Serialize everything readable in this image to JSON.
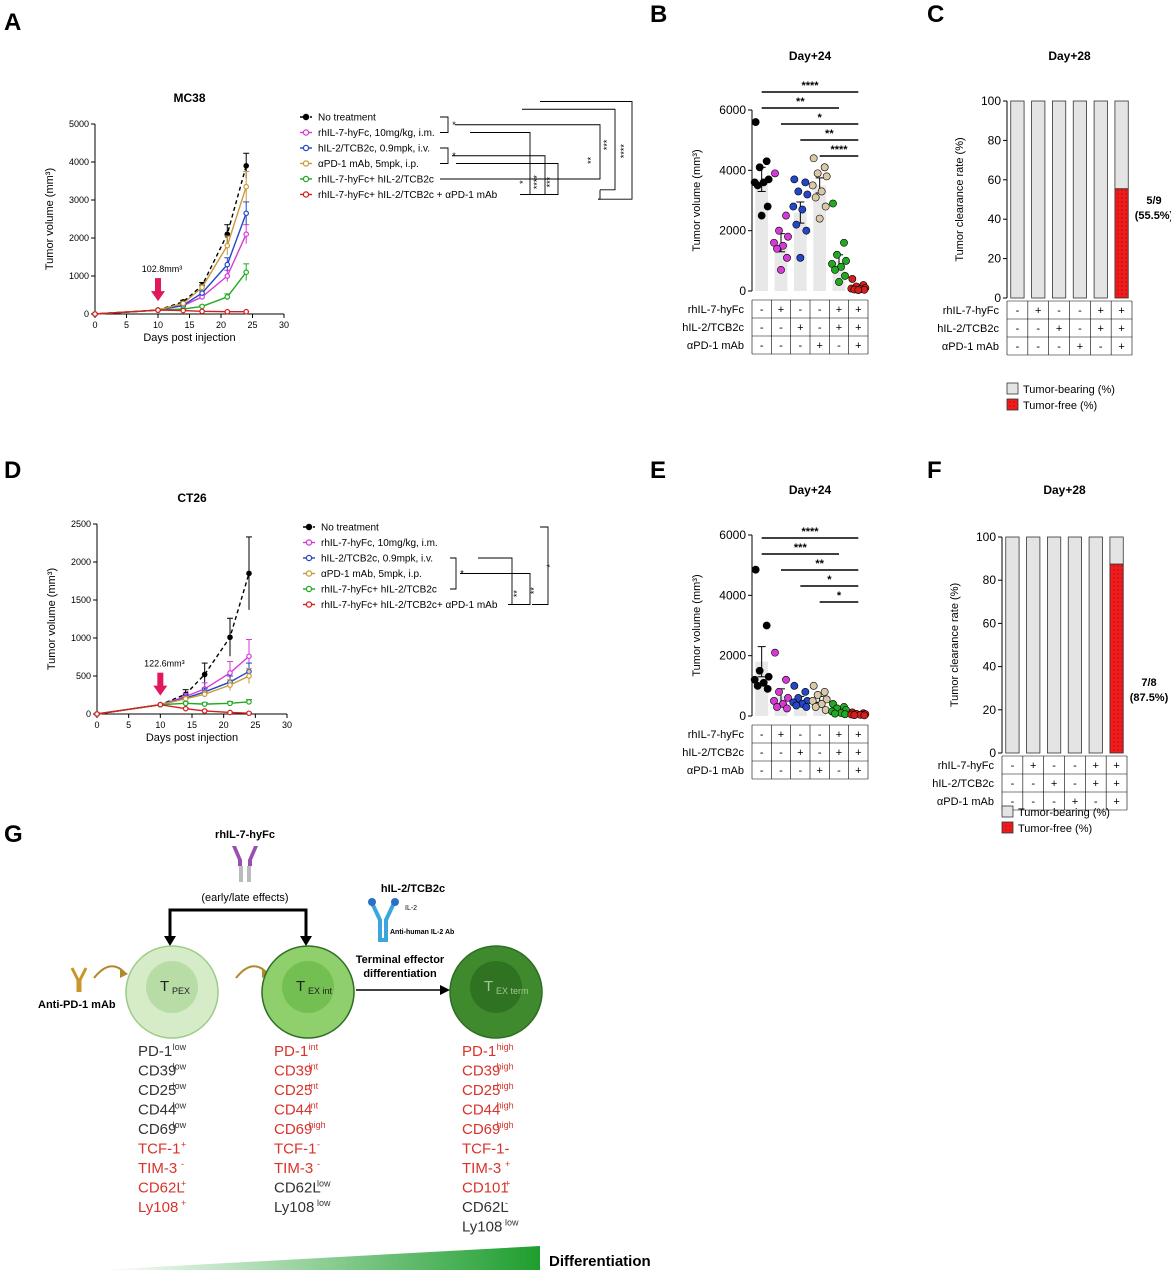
{
  "panel_labels": [
    "A",
    "B",
    "C",
    "D",
    "E",
    "F",
    "G"
  ],
  "chart_data": [
    {
      "id": "A",
      "type": "line",
      "title": "MC38",
      "xlabel": "Days post injection",
      "ylabel": "Tumor volume (mm³)",
      "xlim": [
        0,
        30
      ],
      "ylim": [
        0,
        5000
      ],
      "xticks": [
        0,
        5,
        10,
        15,
        20,
        25,
        30
      ],
      "yticks": [
        0,
        1000,
        2000,
        3000,
        4000,
        5000
      ],
      "annotation": "102.8mm³",
      "annotation_x": 10,
      "x": [
        0,
        10,
        14,
        17,
        21,
        24
      ],
      "series": [
        {
          "name": "No treatment",
          "color": "#000000",
          "dashed": true,
          "values": [
            0,
            102.8,
            320,
            750,
            2100,
            3900
          ],
          "err": [
            0,
            0,
            40,
            80,
            250,
            330
          ]
        },
        {
          "name": "rhIL-7-hyFc, 10mg/kg, i.m.",
          "color": "#d63ad6",
          "dashed": false,
          "values": [
            0,
            102.8,
            220,
            450,
            1000,
            2100
          ],
          "err": [
            0,
            0,
            30,
            60,
            150,
            250
          ]
        },
        {
          "name": "hIL-2/TCB2c, 0.9mpk, i.v.",
          "color": "#2446c8",
          "dashed": false,
          "values": [
            0,
            102.8,
            230,
            550,
            1300,
            2650
          ],
          "err": [
            0,
            0,
            30,
            60,
            180,
            300
          ]
        },
        {
          "name": "αPD-1 mAb, 5mpk, i.p.",
          "color": "#c89a3c",
          "dashed": false,
          "values": [
            0,
            102.8,
            280,
            700,
            1800,
            3350
          ],
          "err": [
            0,
            0,
            35,
            70,
            250,
            400
          ]
        },
        {
          "name": "rhIL-7-hyFc+ hIL-2/TCB2c",
          "color": "#22a822",
          "dashed": false,
          "values": [
            0,
            102.8,
            130,
            200,
            450,
            1100
          ],
          "err": [
            0,
            0,
            20,
            30,
            80,
            220
          ]
        },
        {
          "name": "rhIL-7-hyFc+ hIL-2/TCB2c + αPD-1 mAb",
          "color": "#d41f1f",
          "dashed": false,
          "values": [
            0,
            102.8,
            90,
            70,
            60,
            60
          ],
          "err": [
            0,
            0,
            10,
            10,
            10,
            10
          ]
        }
      ],
      "significance": [
        "*",
        "*",
        "*",
        "****",
        "***",
        "**",
        "***",
        "****"
      ]
    },
    {
      "id": "B",
      "type": "scatter",
      "title": "Day+24",
      "ylabel": "Tumor volume (mm³)",
      "ylim": [
        0,
        6000
      ],
      "yticks": [
        0,
        2000,
        4000,
        6000
      ],
      "groups": [
        {
          "mean": 3700,
          "sem": 400,
          "color": "#000000",
          "points": [
            5600,
            4300,
            4100,
            3700,
            3600,
            3600,
            3500,
            2800,
            2500
          ]
        },
        {
          "mean": 1600,
          "sem": 300,
          "color": "#d63ad6",
          "points": [
            3900,
            2500,
            2000,
            1800,
            1600,
            1500,
            1400,
            1100,
            700
          ]
        },
        {
          "mean": 2600,
          "sem": 350,
          "color": "#2446c8",
          "points": [
            3700,
            3600,
            3300,
            3200,
            2800,
            2700,
            2200,
            2000,
            1100
          ]
        },
        {
          "mean": 3500,
          "sem": 250,
          "color": "#d9c9a8",
          "points": [
            4400,
            4100,
            3900,
            3800,
            3500,
            3300,
            3100,
            2800,
            2400
          ]
        },
        {
          "mean": 1000,
          "sem": 200,
          "color": "#22a822",
          "points": [
            2900,
            1600,
            1200,
            1000,
            900,
            800,
            700,
            500,
            300
          ]
        },
        {
          "mean": 120,
          "sem": 40,
          "color": "#d41f1f",
          "points": [
            400,
            200,
            150,
            100,
            80,
            60,
            50,
            40,
            30
          ]
        }
      ],
      "significance": [
        {
          "from": 0,
          "to": 5,
          "label": "****"
        },
        {
          "from": 0,
          "to": 4,
          "label": "**"
        },
        {
          "from": 1,
          "to": 5,
          "label": "*"
        },
        {
          "from": 2,
          "to": 5,
          "label": "**"
        },
        {
          "from": 3,
          "to": 5,
          "label": "****"
        }
      ],
      "treatment_table": {
        "rows": [
          "rhIL-7-hyFc",
          "hIL-2/TCB2c",
          "αPD-1 mAb"
        ],
        "cells": [
          [
            "-",
            "+",
            "-",
            "-",
            "+",
            "+"
          ],
          [
            "-",
            "-",
            "+",
            "-",
            "+",
            "+"
          ],
          [
            "-",
            "-",
            "-",
            "+",
            "-",
            "+"
          ]
        ]
      }
    },
    {
      "id": "C",
      "type": "bar",
      "title": "Day+28",
      "ylabel": "Tumor clearance rate (%)",
      "ylim": [
        0,
        100
      ],
      "yticks": [
        0,
        20,
        40,
        60,
        80,
        100
      ],
      "stacked": true,
      "series": [
        {
          "name": "Tumor-bearing (%)",
          "color": "#e4e4e4",
          "values": [
            100,
            100,
            100,
            100,
            100,
            44.5
          ]
        },
        {
          "name": "Tumor-free (%)",
          "color": "#ee1c1c",
          "values": [
            0,
            0,
            0,
            0,
            0,
            55.5
          ]
        }
      ],
      "annotation": "5/9",
      "annotation2": "(55.5%)",
      "treatment_table": {
        "rows": [
          "rhIL-7-hyFc",
          "hIL-2/TCB2c",
          "αPD-1 mAb"
        ],
        "cells": [
          [
            "-",
            "+",
            "-",
            "-",
            "+",
            "+"
          ],
          [
            "-",
            "-",
            "+",
            "-",
            "+",
            "+"
          ],
          [
            "-",
            "-",
            "-",
            "+",
            "-",
            "+"
          ]
        ]
      },
      "legend": "bottom"
    },
    {
      "id": "D",
      "type": "line",
      "title": "CT26",
      "xlabel": "Days post injection",
      "ylabel": "Tumor volume (mm³)",
      "xlim": [
        0,
        30
      ],
      "ylim": [
        0,
        2500
      ],
      "xticks": [
        0,
        5,
        10,
        15,
        20,
        25,
        30
      ],
      "yticks": [
        0,
        500,
        1000,
        1500,
        2000,
        2500
      ],
      "annotation": "122.6mm³",
      "annotation_x": 10,
      "x": [
        0,
        10,
        14,
        17,
        21,
        24
      ],
      "series": [
        {
          "name": "No treatment",
          "color": "#000000",
          "dashed": true,
          "values": [
            0,
            122.6,
            260,
            520,
            1010,
            1850
          ],
          "err": [
            0,
            0,
            60,
            150,
            250,
            480
          ]
        },
        {
          "name": "rhIL-7-hyFc, 10mg/kg, i.m.",
          "color": "#d63ad6",
          "dashed": false,
          "values": [
            0,
            122.6,
            230,
            330,
            540,
            760
          ],
          "err": [
            0,
            0,
            40,
            80,
            150,
            220
          ]
        },
        {
          "name": "hIL-2/TCB2c, 0.9mpk, i.v.",
          "color": "#2446c8",
          "dashed": false,
          "values": [
            0,
            122.6,
            210,
            290,
            420,
            560
          ],
          "err": [
            0,
            0,
            30,
            50,
            80,
            110
          ]
        },
        {
          "name": "αPD-1 mAb, 5mpk, i.p.",
          "color": "#c89a3c",
          "dashed": false,
          "values": [
            0,
            122.6,
            200,
            260,
            380,
            500
          ],
          "err": [
            0,
            0,
            30,
            40,
            70,
            100
          ]
        },
        {
          "name": "rhIL-7-hyFc+ hIL-2/TCB2c",
          "color": "#22a822",
          "dashed": false,
          "values": [
            0,
            122.6,
            140,
            130,
            140,
            160
          ],
          "err": [
            0,
            0,
            20,
            20,
            25,
            30
          ]
        },
        {
          "name": "rhIL-7-hyFc+ hIL-2/TCB2c+ αPD-1 mAb",
          "color": "#d41f1f",
          "dashed": false,
          "values": [
            0,
            122.6,
            70,
            40,
            20,
            10
          ],
          "err": [
            0,
            0,
            10,
            10,
            5,
            5
          ]
        }
      ],
      "significance": [
        "*",
        "**",
        "**",
        "*"
      ]
    },
    {
      "id": "E",
      "type": "scatter",
      "title": "Day+24",
      "ylabel": "Tumor volume (mm³)",
      "ylim": [
        0,
        6000
      ],
      "yticks": [
        0,
        2000,
        4000,
        6000
      ],
      "groups": [
        {
          "mean": 1800,
          "sem": 500,
          "color": "#000000",
          "points": [
            4850,
            3000,
            1500,
            1300,
            1200,
            1100,
            1000,
            900
          ]
        },
        {
          "mean": 650,
          "sem": 250,
          "color": "#d63ad6",
          "points": [
            2100,
            1200,
            800,
            600,
            500,
            400,
            300,
            250
          ]
        },
        {
          "mean": 550,
          "sem": 100,
          "color": "#2446c8",
          "points": [
            1000,
            800,
            600,
            500,
            450,
            400,
            350,
            300
          ]
        },
        {
          "mean": 550,
          "sem": 100,
          "color": "#d9c9a8",
          "points": [
            1000,
            800,
            700,
            550,
            500,
            400,
            300,
            200
          ]
        },
        {
          "mean": 200,
          "sem": 40,
          "color": "#22a822",
          "points": [
            400,
            300,
            250,
            200,
            150,
            100,
            80,
            60
          ]
        },
        {
          "mean": 60,
          "sem": 20,
          "color": "#d41f1f",
          "points": [
            120,
            90,
            70,
            60,
            50,
            40,
            30,
            20
          ]
        }
      ],
      "significance": [
        {
          "from": 0,
          "to": 5,
          "label": "****"
        },
        {
          "from": 0,
          "to": 4,
          "label": "***"
        },
        {
          "from": 1,
          "to": 5,
          "label": "**"
        },
        {
          "from": 2,
          "to": 5,
          "label": "*"
        },
        {
          "from": 3,
          "to": 5,
          "label": "*"
        }
      ],
      "treatment_table": {
        "rows": [
          "rhIL-7-hyFc",
          "hIL-2/TCB2c",
          "αPD-1 mAb"
        ],
        "cells": [
          [
            "-",
            "+",
            "-",
            "-",
            "+",
            "+"
          ],
          [
            "-",
            "-",
            "+",
            "-",
            "+",
            "+"
          ],
          [
            "-",
            "-",
            "-",
            "+",
            "-",
            "+"
          ]
        ]
      }
    },
    {
      "id": "F",
      "type": "bar",
      "title": "Day+28",
      "ylabel": "Tumor clearance rate (%)",
      "ylim": [
        0,
        100
      ],
      "yticks": [
        0,
        20,
        40,
        60,
        80,
        100
      ],
      "stacked": true,
      "series": [
        {
          "name": "Tumor-bearing (%)",
          "color": "#e4e4e4",
          "values": [
            100,
            100,
            100,
            100,
            100,
            12.5
          ]
        },
        {
          "name": "Tumor-free (%)",
          "color": "#ee1c1c",
          "values": [
            0,
            0,
            0,
            0,
            0,
            87.5
          ]
        }
      ],
      "annotation": "7/8",
      "annotation2": "(87.5%)",
      "treatment_table": {
        "rows": [
          "rhIL-7-hyFc",
          "hIL-2/TCB2c",
          "αPD-1 mAb"
        ],
        "cells": [
          [
            "-",
            "+",
            "-",
            "-",
            "+",
            "+"
          ],
          [
            "-",
            "-",
            "+",
            "-",
            "+",
            "+"
          ],
          [
            "-",
            "-",
            "-",
            "+",
            "-",
            "+"
          ]
        ]
      },
      "legend": "bottom"
    }
  ],
  "diagram": {
    "drug_top": "rhIL-7-hyFc",
    "effects": "(early/late effects)",
    "drug_il2": "hIL-2/TCB2c",
    "il2_label": "IL-2",
    "ab_label": "Anti-human IL-2 Ab",
    "anti_pd1": "Anti-PD-1 mAb",
    "differentiation_label": "Terminal effector",
    "differentiation_label2": "differentiation",
    "gradient_label": "Differentiation",
    "cells": [
      {
        "name": "T",
        "sub": "PEX",
        "fill_outer": "#d6ecc9",
        "fill_inner": "#b8dca5",
        "text": "#222",
        "markers": [
          [
            "PD-1",
            "low",
            "#333"
          ],
          [
            "CD39",
            "low",
            "#333"
          ],
          [
            "CD25",
            "low",
            "#333"
          ],
          [
            "CD44",
            "low",
            "#333"
          ],
          [
            "CD69",
            "low",
            "#333"
          ],
          [
            "TCF-1",
            "+",
            "#d9332b"
          ],
          [
            "TIM-3",
            "-",
            "#d9332b"
          ],
          [
            "CD62L",
            "+",
            "#d9332b"
          ],
          [
            "Ly108",
            "+",
            "#d9332b"
          ]
        ]
      },
      {
        "name": "T",
        "sub": "EX int",
        "fill_outer": "#8fd06c",
        "fill_inner": "#74bf52",
        "text": "#222",
        "markers": [
          [
            "PD-1",
            "int",
            "#d9332b"
          ],
          [
            "CD39",
            "int",
            "#d9332b"
          ],
          [
            "CD25",
            "int",
            "#d9332b"
          ],
          [
            "CD44",
            "int",
            "#d9332b"
          ],
          [
            "CD69",
            "high",
            "#d9332b"
          ],
          [
            "TCF-1",
            "-",
            "#d9332b"
          ],
          [
            "TIM-3",
            "-",
            "#d9332b"
          ],
          [
            "CD62L",
            "low",
            "#333"
          ],
          [
            "Ly108",
            "low",
            "#333"
          ]
        ]
      },
      {
        "name": "T",
        "sub": "EX term",
        "fill_outer": "#3e8a2c",
        "fill_inner": "#2f7322",
        "text": "#9fc992",
        "markers": [
          [
            "PD-1",
            "high",
            "#d9332b"
          ],
          [
            "CD39",
            "high",
            "#d9332b"
          ],
          [
            "CD25",
            "high",
            "#d9332b"
          ],
          [
            "CD44",
            "high",
            "#d9332b"
          ],
          [
            "CD69",
            "high",
            "#d9332b"
          ],
          [
            "TCF-1-",
            "",
            "#d9332b"
          ],
          [
            "TIM-3",
            "+",
            "#d9332b"
          ],
          [
            "CD101",
            "+",
            "#d9332b"
          ],
          [
            "CD62L",
            "-",
            "#333"
          ],
          [
            "Ly108",
            "low",
            "#333"
          ]
        ]
      }
    ]
  }
}
